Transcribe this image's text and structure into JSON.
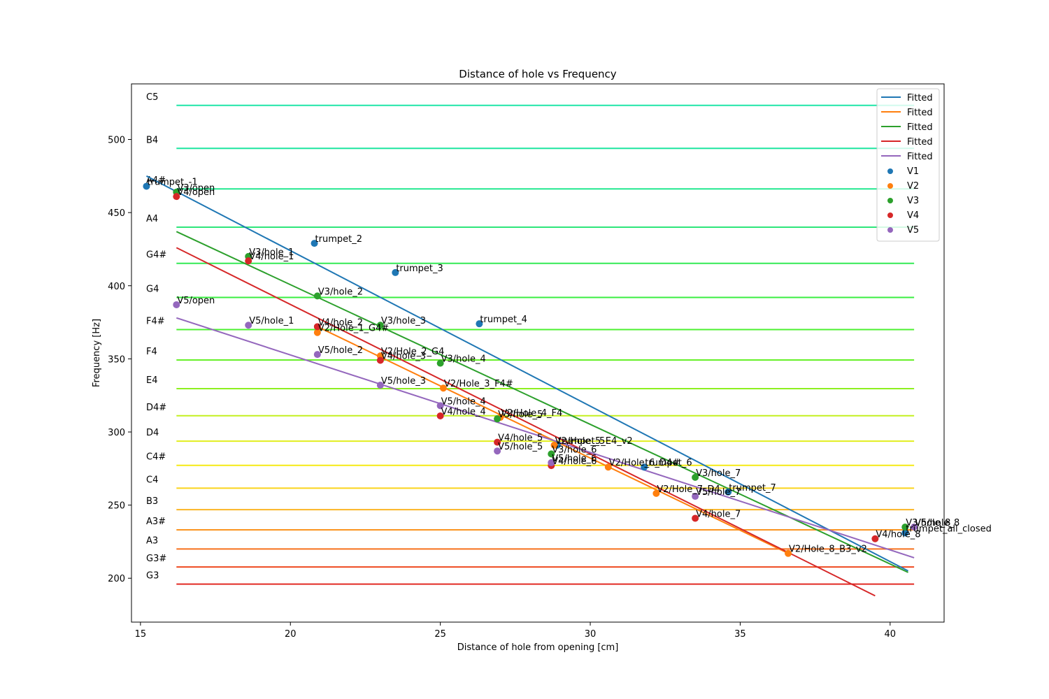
{
  "chart_data": {
    "type": "scatter",
    "title": "Distance of hole vs Frequency",
    "xlabel": "Distance of hole from opening [cm]",
    "ylabel": "Frequency [Hz]",
    "xlim": [
      14.7,
      41.8
    ],
    "ylim": [
      170,
      538
    ],
    "xticks": [
      15,
      20,
      25,
      30,
      35,
      40
    ],
    "yticks": [
      200,
      250,
      300,
      350,
      400,
      450,
      500
    ],
    "grid": false,
    "legend_position": "top-right",
    "note_lines": {
      "x_range": [
        16.2,
        40.8
      ],
      "items": [
        {
          "note": "C5",
          "freq": 523.3,
          "color": "#1ee6a8"
        },
        {
          "note": "B4",
          "freq": 493.9,
          "color": "#1ee6a0"
        },
        {
          "note": "A4#",
          "freq": 466.2,
          "color": "#22e890"
        },
        {
          "note": "A4",
          "freq": 440.0,
          "color": "#2ee67a"
        },
        {
          "note": "G4#",
          "freq": 415.3,
          "color": "#33ea55"
        },
        {
          "note": "G4",
          "freq": 392.0,
          "color": "#3aee40"
        },
        {
          "note": "F4#",
          "freq": 370.0,
          "color": "#4cf030"
        },
        {
          "note": "F4",
          "freq": 349.2,
          "color": "#66f028"
        },
        {
          "note": "E4",
          "freq": 329.6,
          "color": "#8ef020"
        },
        {
          "note": "D4#",
          "freq": 311.1,
          "color": "#c4f020"
        },
        {
          "note": "D4",
          "freq": 293.7,
          "color": "#e2ee1e"
        },
        {
          "note": "C4#",
          "freq": 277.2,
          "color": "#f6ea14"
        },
        {
          "note": "C4",
          "freq": 261.6,
          "color": "#fad41c"
        },
        {
          "note": "B3",
          "freq": 246.9,
          "color": "#fbb424"
        },
        {
          "note": "A3#",
          "freq": 233.1,
          "color": "#fb9420"
        },
        {
          "note": "A3",
          "freq": 220.0,
          "color": "#f6701c"
        },
        {
          "note": "G3#",
          "freq": 207.7,
          "color": "#ee4a20"
        },
        {
          "note": "G3",
          "freq": 196.0,
          "color": "#e22a24"
        }
      ]
    },
    "fits": [
      {
        "legend": "Fitted",
        "color": "#1f77b4",
        "x": [
          15.2,
          40.6
        ],
        "y": [
          475,
          205
        ]
      },
      {
        "legend": "Fitted",
        "color": "#ff7f0e",
        "x": [
          20.9,
          36.6
        ],
        "y": [
          372,
          217
        ]
      },
      {
        "legend": "Fitted",
        "color": "#2ca02c",
        "x": [
          16.2,
          40.6
        ],
        "y": [
          437,
          204
        ]
      },
      {
        "legend": "Fitted",
        "color": "#d62728",
        "x": [
          16.2,
          39.5
        ],
        "y": [
          426,
          188
        ]
      },
      {
        "legend": "Fitted",
        "color": "#9467bd",
        "x": [
          16.2,
          40.8
        ],
        "y": [
          378,
          214
        ]
      }
    ],
    "series": [
      {
        "name": "V1",
        "color": "#1f77b4",
        "points": [
          {
            "x": 15.2,
            "y": 468,
            "label": "trumpet_-1"
          },
          {
            "x": 20.8,
            "y": 429,
            "label": "trumpet_2"
          },
          {
            "x": 23.5,
            "y": 409,
            "label": "trumpet_3"
          },
          {
            "x": 26.3,
            "y": 374,
            "label": "trumpet_4"
          },
          {
            "x": 28.9,
            "y": 291,
            "label": "trumpet_5"
          },
          {
            "x": 31.8,
            "y": 276,
            "label": "trumpet_6"
          },
          {
            "x": 34.6,
            "y": 259,
            "label": "trumpet_7"
          },
          {
            "x": 40.5,
            "y": 231,
            "label": "trumpet_all_closed"
          }
        ]
      },
      {
        "name": "V2",
        "color": "#ff7f0e",
        "points": [
          {
            "x": 20.9,
            "y": 368,
            "label": "V2/Hole_1_G4#"
          },
          {
            "x": 23.0,
            "y": 352,
            "label": "V2/Hole_2_G4"
          },
          {
            "x": 25.1,
            "y": 330,
            "label": "V2/Hole_3_F4#"
          },
          {
            "x": 27.0,
            "y": 310,
            "label": "V2/Hole_4_F4"
          },
          {
            "x": 28.8,
            "y": 291,
            "label": "V2/Hole_5_E4_v2"
          },
          {
            "x": 30.6,
            "y": 276,
            "label": "V2/Hole_6_D4#"
          },
          {
            "x": 32.2,
            "y": 258,
            "label": "V2/Hole_7_D4"
          },
          {
            "x": 36.6,
            "y": 217,
            "label": "V2/Hole_8_B3_v2"
          }
        ]
      },
      {
        "name": "V3",
        "color": "#2ca02c",
        "points": [
          {
            "x": 16.2,
            "y": 464,
            "label": "V3/open"
          },
          {
            "x": 18.6,
            "y": 420,
            "label": "V3/hole_1"
          },
          {
            "x": 20.9,
            "y": 393,
            "label": "V3/hole_2"
          },
          {
            "x": 23.0,
            "y": 373,
            "label": "V3/hole_3"
          },
          {
            "x": 25.0,
            "y": 347,
            "label": "V3/hole_4"
          },
          {
            "x": 26.9,
            "y": 309,
            "label": "V3/hole_5"
          },
          {
            "x": 28.7,
            "y": 285,
            "label": "V3/hole_6"
          },
          {
            "x": 33.5,
            "y": 269,
            "label": "V3/hole_7"
          },
          {
            "x": 40.5,
            "y": 235,
            "label": "V3/hole_8"
          }
        ]
      },
      {
        "name": "V4",
        "color": "#d62728",
        "points": [
          {
            "x": 16.2,
            "y": 461,
            "label": "V4/open"
          },
          {
            "x": 18.6,
            "y": 417,
            "label": "V4/hole_1"
          },
          {
            "x": 20.9,
            "y": 372,
            "label": "V4/hole_2"
          },
          {
            "x": 23.0,
            "y": 349,
            "label": "V4/hole_3"
          },
          {
            "x": 25.0,
            "y": 311,
            "label": "V4/hole_4"
          },
          {
            "x": 26.9,
            "y": 293,
            "label": "V4/hole_5"
          },
          {
            "x": 28.7,
            "y": 277,
            "label": "V4/hole_6"
          },
          {
            "x": 33.5,
            "y": 241,
            "label": "V4/hole_7"
          },
          {
            "x": 39.5,
            "y": 227,
            "label": "V4/hole_8"
          }
        ]
      },
      {
        "name": "V5",
        "color": "#9467bd",
        "points": [
          {
            "x": 16.2,
            "y": 387,
            "label": "V5/open"
          },
          {
            "x": 18.6,
            "y": 373,
            "label": "V5/hole_1"
          },
          {
            "x": 20.9,
            "y": 353,
            "label": "V5/hole_2"
          },
          {
            "x": 23.0,
            "y": 332,
            "label": "V5/hole_3"
          },
          {
            "x": 25.0,
            "y": 318,
            "label": "V5/hole_4"
          },
          {
            "x": 26.9,
            "y": 287,
            "label": "V5/hole_5"
          },
          {
            "x": 28.7,
            "y": 279,
            "label": "V5/hole_6"
          },
          {
            "x": 33.5,
            "y": 256,
            "label": "V5/hole_7"
          },
          {
            "x": 40.8,
            "y": 235,
            "label": "V5/hole_8"
          }
        ]
      }
    ]
  }
}
